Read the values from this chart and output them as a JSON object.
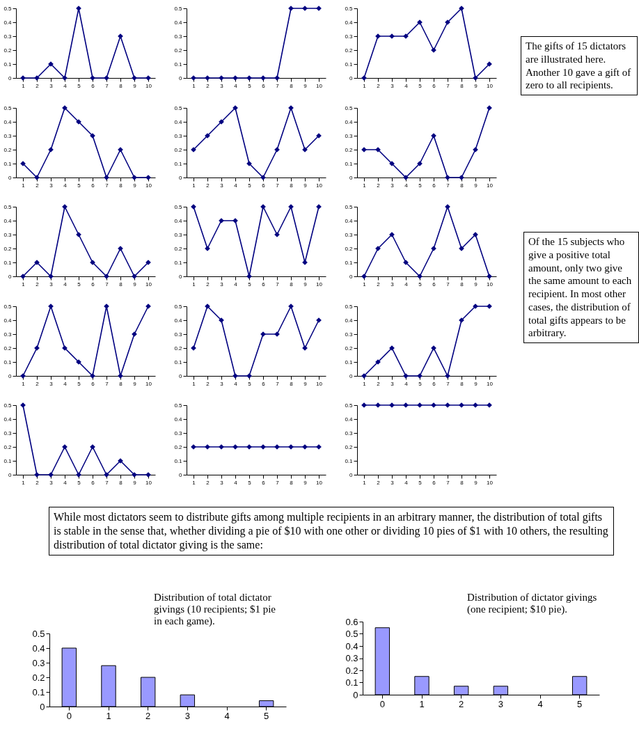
{
  "chart_data": [
    {
      "type": "line",
      "categories": [
        "1",
        "2",
        "3",
        "4",
        "5",
        "6",
        "7",
        "8",
        "9",
        "10"
      ],
      "values": [
        0,
        0,
        0.1,
        0,
        0.5,
        0,
        0,
        0.3,
        0,
        0
      ],
      "color": "#000080",
      "ylim": [
        0,
        0.5
      ],
      "yticks": [
        0,
        0.1,
        0.2,
        0.3,
        0.4,
        0.5
      ],
      "marker": "diamond"
    },
    {
      "type": "line",
      "categories": [
        "1",
        "2",
        "3",
        "4",
        "5",
        "6",
        "7",
        "8",
        "9",
        "10"
      ],
      "values": [
        0,
        0,
        0,
        0,
        0,
        0,
        0,
        0.5,
        0.5,
        0.5
      ],
      "color": "#000080",
      "ylim": [
        0,
        0.5
      ],
      "yticks": [
        0,
        0.1,
        0.2,
        0.3,
        0.4,
        0.5
      ],
      "marker": "diamond"
    },
    {
      "type": "line",
      "categories": [
        "1",
        "2",
        "3",
        "4",
        "5",
        "6",
        "7",
        "8",
        "9",
        "10"
      ],
      "values": [
        0,
        0.3,
        0.3,
        0.3,
        0.4,
        0.2,
        0.4,
        0.5,
        0,
        0.1
      ],
      "color": "#000080",
      "ylim": [
        0,
        0.5
      ],
      "yticks": [
        0,
        0.1,
        0.2,
        0.3,
        0.4,
        0.5
      ],
      "marker": "diamond"
    },
    {
      "type": "other",
      "annotations": [
        "The gifts of 15 dictators are illustrated here. Another 10 gave a gift of zero to all recipients."
      ]
    },
    {
      "type": "line",
      "categories": [
        "1",
        "2",
        "3",
        "4",
        "5",
        "6",
        "7",
        "8",
        "9",
        "10"
      ],
      "values": [
        0.1,
        0,
        0.2,
        0.5,
        0.4,
        0.3,
        0,
        0.2,
        0,
        0
      ],
      "color": "#000080",
      "ylim": [
        0,
        0.5
      ],
      "yticks": [
        0,
        0.1,
        0.2,
        0.3,
        0.4,
        0.5
      ],
      "marker": "diamond"
    },
    {
      "type": "line",
      "categories": [
        "1",
        "2",
        "3",
        "4",
        "5",
        "6",
        "7",
        "8",
        "9",
        "10"
      ],
      "values": [
        0.2,
        0.3,
        0.4,
        0.5,
        0.1,
        0,
        0.2,
        0.5,
        0.2,
        0.3
      ],
      "color": "#000080",
      "ylim": [
        0,
        0.5
      ],
      "yticks": [
        0,
        0.1,
        0.2,
        0.3,
        0.4,
        0.5
      ],
      "marker": "diamond"
    },
    {
      "type": "line",
      "categories": [
        "1",
        "2",
        "3",
        "4",
        "5",
        "6",
        "7",
        "8",
        "9",
        "10"
      ],
      "values": [
        0.2,
        0.2,
        0.1,
        0,
        0.1,
        0.3,
        0,
        0,
        0.2,
        0.5
      ],
      "color": "#000080",
      "ylim": [
        0,
        0.5
      ],
      "yticks": [
        0,
        0.1,
        0.2,
        0.3,
        0.4,
        0.5
      ],
      "marker": "diamond"
    },
    {
      "type": "line",
      "categories": [
        "1",
        "2",
        "3",
        "4",
        "5",
        "6",
        "7",
        "8",
        "9",
        "10"
      ],
      "values": [
        0,
        0.1,
        0,
        0.5,
        0.3,
        0.1,
        0,
        0.2,
        0,
        0.1
      ],
      "color": "#000080",
      "ylim": [
        0,
        0.5
      ],
      "yticks": [
        0,
        0.1,
        0.2,
        0.3,
        0.4,
        0.5
      ],
      "marker": "diamond"
    },
    {
      "type": "line",
      "categories": [
        "1",
        "2",
        "3",
        "4",
        "5",
        "6",
        "7",
        "8",
        "9",
        "10"
      ],
      "values": [
        0.5,
        0.2,
        0.4,
        0.4,
        0,
        0.5,
        0.3,
        0.5,
        0.1,
        0.5
      ],
      "color": "#000080",
      "ylim": [
        0,
        0.5
      ],
      "yticks": [
        0,
        0.1,
        0.2,
        0.3,
        0.4,
        0.5
      ],
      "marker": "diamond"
    },
    {
      "type": "line",
      "categories": [
        "1",
        "2",
        "3",
        "4",
        "5",
        "6",
        "7",
        "8",
        "9",
        "10"
      ],
      "values": [
        0,
        0.2,
        0.3,
        0.1,
        0,
        0.2,
        0.5,
        0.2,
        0.3,
        0
      ],
      "color": "#000080",
      "ylim": [
        0,
        0.5
      ],
      "yticks": [
        0,
        0.1,
        0.2,
        0.3,
        0.4,
        0.5
      ],
      "marker": "diamond"
    },
    {
      "type": "other",
      "annotations": [
        "Of the 15 subjects who give a positive total amount, only two give the same amount to each recipient.  In most other cases, the distribution of total gifts appears to be arbitrary."
      ]
    },
    {
      "type": "line",
      "categories": [
        "1",
        "2",
        "3",
        "4",
        "5",
        "6",
        "7",
        "8",
        "9",
        "10"
      ],
      "values": [
        0,
        0.2,
        0.5,
        0.2,
        0.1,
        0,
        0.5,
        0,
        0.3,
        0.5
      ],
      "color": "#000080",
      "ylim": [
        0,
        0.5
      ],
      "yticks": [
        0,
        0.1,
        0.2,
        0.3,
        0.4,
        0.5
      ],
      "marker": "diamond"
    },
    {
      "type": "line",
      "categories": [
        "1",
        "2",
        "3",
        "4",
        "5",
        "6",
        "7",
        "8",
        "9",
        "10"
      ],
      "values": [
        0.2,
        0.5,
        0.4,
        0,
        0,
        0.3,
        0.3,
        0.5,
        0.2,
        0.4
      ],
      "color": "#000080",
      "ylim": [
        0,
        0.5
      ],
      "yticks": [
        0,
        0.1,
        0.2,
        0.3,
        0.4,
        0.5
      ],
      "marker": "diamond"
    },
    {
      "type": "line",
      "categories": [
        "1",
        "2",
        "3",
        "4",
        "5",
        "6",
        "7",
        "8",
        "9",
        "10"
      ],
      "values": [
        0,
        0.1,
        0.2,
        0,
        0,
        0.2,
        0,
        0.4,
        0.5,
        0.5
      ],
      "color": "#000080",
      "ylim": [
        0,
        0.5
      ],
      "yticks": [
        0,
        0.1,
        0.2,
        0.3,
        0.4,
        0.5
      ],
      "marker": "diamond"
    },
    {
      "type": "line",
      "categories": [
        "1",
        "2",
        "3",
        "4",
        "5",
        "6",
        "7",
        "8",
        "9",
        "10"
      ],
      "values": [
        0.5,
        0,
        0,
        0.2,
        0,
        0.2,
        0,
        0.1,
        0,
        0
      ],
      "color": "#000080",
      "ylim": [
        0,
        0.5
      ],
      "yticks": [
        0,
        0.1,
        0.2,
        0.3,
        0.4,
        0.5
      ],
      "marker": "diamond"
    },
    {
      "type": "line",
      "categories": [
        "1",
        "2",
        "3",
        "4",
        "5",
        "6",
        "7",
        "8",
        "9",
        "10"
      ],
      "values": [
        0.2,
        0.2,
        0.2,
        0.2,
        0.2,
        0.2,
        0.2,
        0.2,
        0.2,
        0.2
      ],
      "color": "#000080",
      "ylim": [
        0,
        0.5
      ],
      "yticks": [
        0,
        0.1,
        0.2,
        0.3,
        0.4,
        0.5
      ],
      "marker": "diamond"
    },
    {
      "type": "line",
      "categories": [
        "1",
        "2",
        "3",
        "4",
        "5",
        "6",
        "7",
        "8",
        "9",
        "10"
      ],
      "values": [
        0.5,
        0.5,
        0.5,
        0.5,
        0.5,
        0.5,
        0.5,
        0.5,
        0.5,
        0.5
      ],
      "color": "#000080",
      "ylim": [
        0,
        0.5
      ],
      "yticks": [
        0,
        0.1,
        0.2,
        0.3,
        0.4,
        0.5
      ],
      "marker": "diamond"
    },
    {
      "type": "other",
      "annotations": [
        "While most dictators seem to distribute gifts among multiple recipients in an arbitrary manner, the distribution of total gifts is stable in the sense that, whether dividing a pie of $10 with one other or dividing 10 pies of $1 with 10 others, the resulting distribution of total dictator giving is the same:"
      ]
    },
    {
      "type": "bar",
      "title": "Distribution of total dictator givings (10 recipients; $1 pie in each game).",
      "categories": [
        "0",
        "1",
        "2",
        "3",
        "4",
        "5"
      ],
      "values": [
        0.4,
        0.28,
        0.2,
        0.08,
        0,
        0.04
      ],
      "color": "#9999ff",
      "ylim": [
        0,
        0.5
      ],
      "yticks": [
        0,
        0.1,
        0.2,
        0.3,
        0.4,
        0.5
      ]
    },
    {
      "type": "bar",
      "title": "Distribution of dictator givings (one recipient; $10 pie).",
      "categories": [
        "0",
        "1",
        "2",
        "3",
        "4",
        "5"
      ],
      "values": [
        0.55,
        0.15,
        0.07,
        0.07,
        0,
        0.15
      ],
      "color": "#9999ff",
      "ylim": [
        0,
        0.6
      ],
      "yticks": [
        0,
        0.1,
        0.2,
        0.3,
        0.4,
        0.5,
        0.6
      ]
    }
  ]
}
